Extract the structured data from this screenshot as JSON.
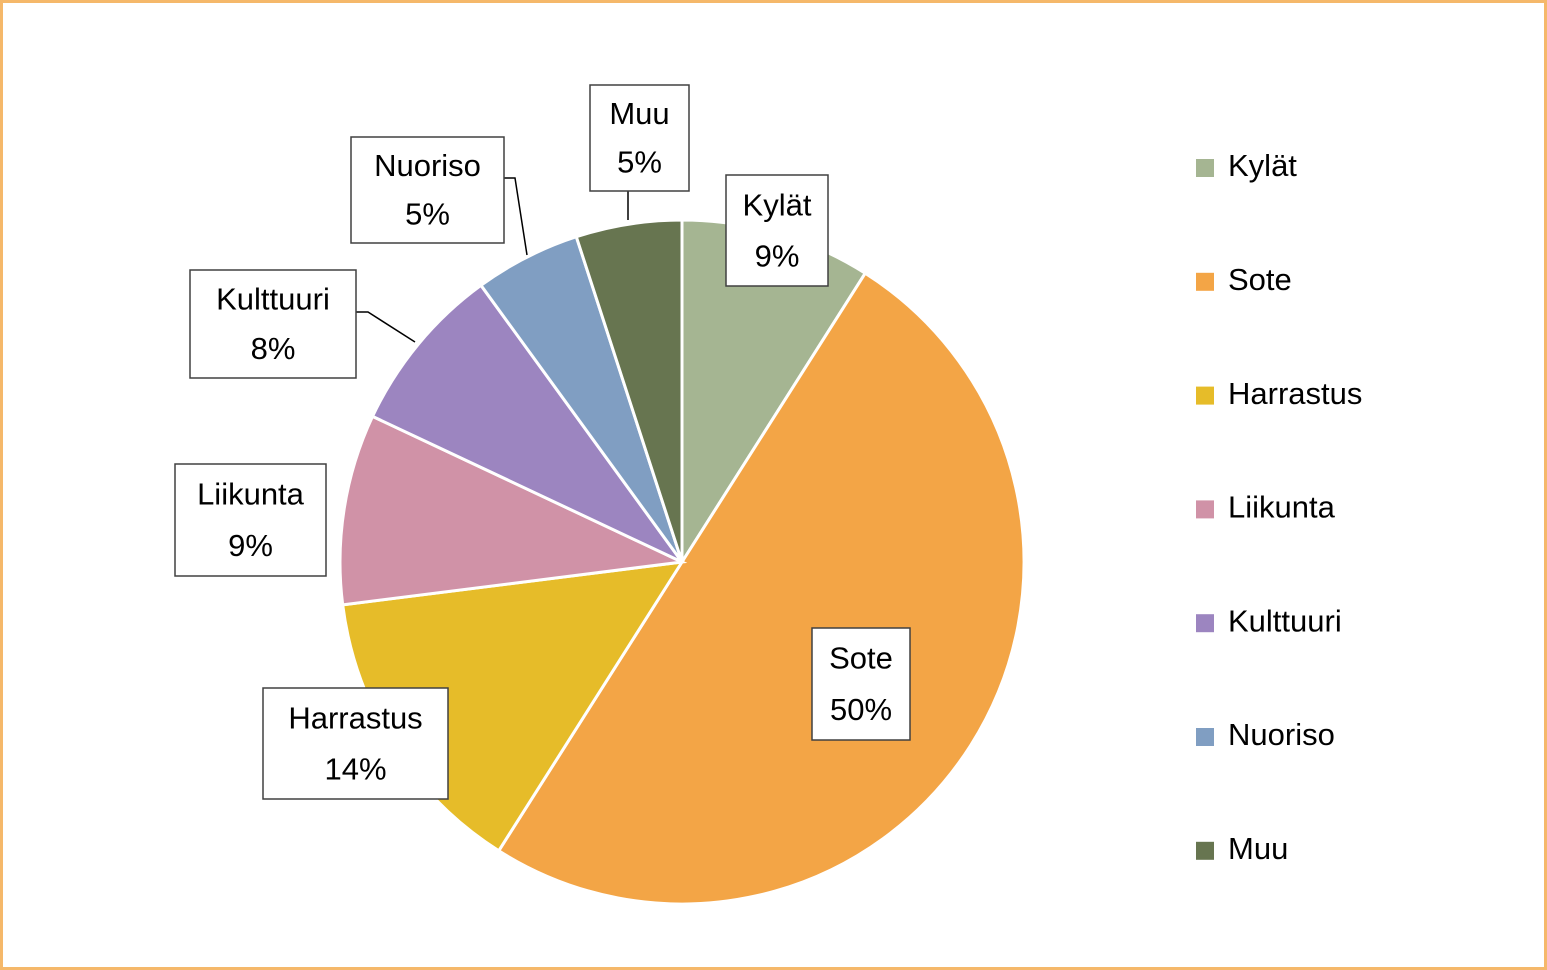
{
  "chart_data": {
    "type": "pie",
    "categories": [
      "Kylät",
      "Sote",
      "Harrastus",
      "Liikunta",
      "Kulttuuri",
      "Nuoriso",
      "Muu"
    ],
    "values": [
      9,
      50,
      14,
      9,
      8,
      5,
      5
    ],
    "value_labels": [
      "9%",
      "50%",
      "14%",
      "9%",
      "8%",
      "5%",
      "5%"
    ],
    "colors": [
      "#a5b592",
      "#f3a546",
      "#e6bc29",
      "#d092a7",
      "#9c85c0",
      "#809ec2",
      "#677550"
    ],
    "legend": "right"
  }
}
